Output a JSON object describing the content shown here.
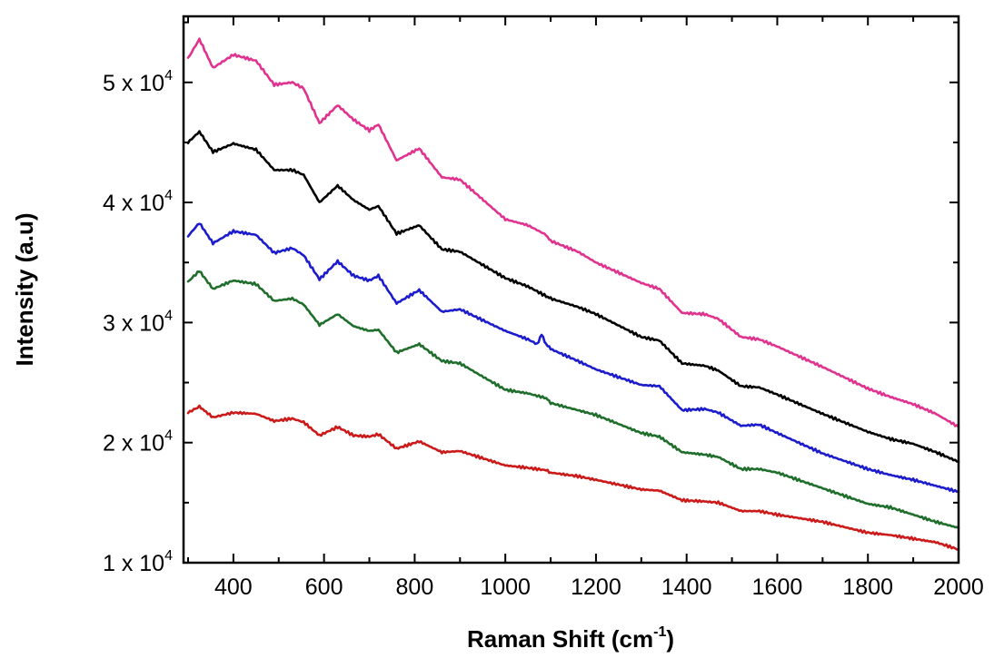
{
  "chart_data": {
    "type": "line",
    "title": "",
    "xlabel": "Raman Shift (cm",
    "xlabel_sup": "-1",
    "xlabel_tail": ")",
    "ylabel": "Intensity (a.u)",
    "xlim": [
      290,
      2000
    ],
    "ylim": [
      10000,
      55500
    ],
    "x_ticks": [
      400,
      600,
      800,
      1000,
      1200,
      1400,
      1600,
      1800,
      2000
    ],
    "x_tick_labels": [
      "400",
      "600",
      "800",
      "1000",
      "1200",
      "1400",
      "1600",
      "1800",
      "2000"
    ],
    "y_ticks": [
      10000,
      20000,
      30000,
      40000,
      50000
    ],
    "y_tick_labels": [
      {
        "mantissa": "1 x 10",
        "exp": "4"
      },
      {
        "mantissa": "2 x 10",
        "exp": "4"
      },
      {
        "mantissa": "3 x 10",
        "exp": "4"
      },
      {
        "mantissa": "4 x 10",
        "exp": "4"
      },
      {
        "mantissa": "5 x 10",
        "exp": "4"
      }
    ],
    "grid": false,
    "legend": "none",
    "series": [
      {
        "color": "#e0338f",
        "points": [
          [
            300,
            52000
          ],
          [
            325,
            53600
          ],
          [
            355,
            51200
          ],
          [
            400,
            52300
          ],
          [
            450,
            51800
          ],
          [
            490,
            49800
          ],
          [
            530,
            50000
          ],
          [
            555,
            49500
          ],
          [
            590,
            46600
          ],
          [
            630,
            48100
          ],
          [
            665,
            46900
          ],
          [
            700,
            46000
          ],
          [
            720,
            46500
          ],
          [
            760,
            43500
          ],
          [
            810,
            44500
          ],
          [
            860,
            42100
          ],
          [
            900,
            41900
          ],
          [
            1000,
            38600
          ],
          [
            1050,
            38100
          ],
          [
            1090,
            37300
          ],
          [
            1100,
            36800
          ],
          [
            1160,
            35900
          ],
          [
            1200,
            35000
          ],
          [
            1300,
            33300
          ],
          [
            1340,
            32800
          ],
          [
            1390,
            30800
          ],
          [
            1440,
            30700
          ],
          [
            1470,
            30300
          ],
          [
            1520,
            28800
          ],
          [
            1560,
            28600
          ],
          [
            1600,
            28000
          ],
          [
            1700,
            26300
          ],
          [
            1800,
            24500
          ],
          [
            1850,
            23800
          ],
          [
            1900,
            23200
          ],
          [
            1950,
            22400
          ],
          [
            2000,
            21300
          ]
        ]
      },
      {
        "color": "#000000",
        "points": [
          [
            300,
            45000
          ],
          [
            325,
            45900
          ],
          [
            355,
            44200
          ],
          [
            400,
            44900
          ],
          [
            450,
            44400
          ],
          [
            490,
            42700
          ],
          [
            530,
            42700
          ],
          [
            555,
            42300
          ],
          [
            590,
            40000
          ],
          [
            630,
            41400
          ],
          [
            665,
            40200
          ],
          [
            700,
            39400
          ],
          [
            720,
            39700
          ],
          [
            760,
            37400
          ],
          [
            810,
            38100
          ],
          [
            860,
            36100
          ],
          [
            900,
            35900
          ],
          [
            1000,
            33700
          ],
          [
            1050,
            33000
          ],
          [
            1090,
            32200
          ],
          [
            1100,
            32000
          ],
          [
            1160,
            31300
          ],
          [
            1200,
            30700
          ],
          [
            1300,
            28800
          ],
          [
            1340,
            28500
          ],
          [
            1390,
            26600
          ],
          [
            1440,
            26400
          ],
          [
            1470,
            26000
          ],
          [
            1520,
            24700
          ],
          [
            1560,
            24600
          ],
          [
            1600,
            24000
          ],
          [
            1700,
            22400
          ],
          [
            1800,
            20900
          ],
          [
            1850,
            20300
          ],
          [
            1900,
            19900
          ],
          [
            1950,
            19200
          ],
          [
            2000,
            18400
          ]
        ]
      },
      {
        "color": "#1c1ccc",
        "points": [
          [
            300,
            37200
          ],
          [
            325,
            38300
          ],
          [
            355,
            36600
          ],
          [
            400,
            37600
          ],
          [
            450,
            37300
          ],
          [
            490,
            35800
          ],
          [
            530,
            36200
          ],
          [
            555,
            35600
          ],
          [
            590,
            33600
          ],
          [
            630,
            35100
          ],
          [
            665,
            33900
          ],
          [
            700,
            33500
          ],
          [
            720,
            33900
          ],
          [
            760,
            31600
          ],
          [
            810,
            32700
          ],
          [
            860,
            30900
          ],
          [
            900,
            31100
          ],
          [
            1000,
            29300
          ],
          [
            1050,
            28600
          ],
          [
            1070,
            28200
          ],
          [
            1080,
            29000
          ],
          [
            1090,
            28200
          ],
          [
            1100,
            27800
          ],
          [
            1160,
            26800
          ],
          [
            1200,
            26100
          ],
          [
            1300,
            24800
          ],
          [
            1340,
            24700
          ],
          [
            1390,
            22700
          ],
          [
            1440,
            22800
          ],
          [
            1470,
            22500
          ],
          [
            1520,
            21400
          ],
          [
            1560,
            21500
          ],
          [
            1600,
            20800
          ],
          [
            1700,
            19100
          ],
          [
            1800,
            17800
          ],
          [
            1850,
            17300
          ],
          [
            1900,
            16900
          ],
          [
            1950,
            16400
          ],
          [
            2000,
            15900
          ]
        ]
      },
      {
        "color": "#1f6e2c",
        "points": [
          [
            300,
            33400
          ],
          [
            325,
            34300
          ],
          [
            355,
            32800
          ],
          [
            400,
            33500
          ],
          [
            450,
            33200
          ],
          [
            490,
            31800
          ],
          [
            530,
            32000
          ],
          [
            555,
            31500
          ],
          [
            590,
            29800
          ],
          [
            630,
            30700
          ],
          [
            665,
            29700
          ],
          [
            700,
            29300
          ],
          [
            720,
            29400
          ],
          [
            760,
            27500
          ],
          [
            810,
            28200
          ],
          [
            860,
            26800
          ],
          [
            900,
            26600
          ],
          [
            1000,
            24400
          ],
          [
            1050,
            24100
          ],
          [
            1090,
            23700
          ],
          [
            1100,
            23300
          ],
          [
            1160,
            22700
          ],
          [
            1200,
            22300
          ],
          [
            1300,
            20800
          ],
          [
            1340,
            20500
          ],
          [
            1390,
            19200
          ],
          [
            1440,
            19000
          ],
          [
            1470,
            18800
          ],
          [
            1520,
            17800
          ],
          [
            1560,
            17800
          ],
          [
            1600,
            17500
          ],
          [
            1700,
            16200
          ],
          [
            1800,
            14900
          ],
          [
            1850,
            14600
          ],
          [
            1900,
            14000
          ],
          [
            1950,
            13400
          ],
          [
            2000,
            12900
          ]
        ]
      },
      {
        "color": "#cc1a1a",
        "points": [
          [
            300,
            22500
          ],
          [
            325,
            23000
          ],
          [
            355,
            22100
          ],
          [
            400,
            22500
          ],
          [
            450,
            22400
          ],
          [
            490,
            21800
          ],
          [
            530,
            22000
          ],
          [
            555,
            21700
          ],
          [
            590,
            20600
          ],
          [
            630,
            21300
          ],
          [
            665,
            20600
          ],
          [
            700,
            20500
          ],
          [
            720,
            20700
          ],
          [
            760,
            19500
          ],
          [
            810,
            20100
          ],
          [
            860,
            19200
          ],
          [
            900,
            19300
          ],
          [
            1000,
            18100
          ],
          [
            1050,
            17900
          ],
          [
            1090,
            17700
          ],
          [
            1100,
            17500
          ],
          [
            1160,
            17200
          ],
          [
            1200,
            16900
          ],
          [
            1300,
            16100
          ],
          [
            1340,
            16000
          ],
          [
            1390,
            15200
          ],
          [
            1440,
            15100
          ],
          [
            1470,
            15000
          ],
          [
            1520,
            14300
          ],
          [
            1560,
            14300
          ],
          [
            1600,
            14000
          ],
          [
            1700,
            13400
          ],
          [
            1800,
            12500
          ],
          [
            1850,
            12300
          ],
          [
            1900,
            12000
          ],
          [
            1950,
            11700
          ],
          [
            2000,
            11100
          ]
        ]
      }
    ]
  }
}
